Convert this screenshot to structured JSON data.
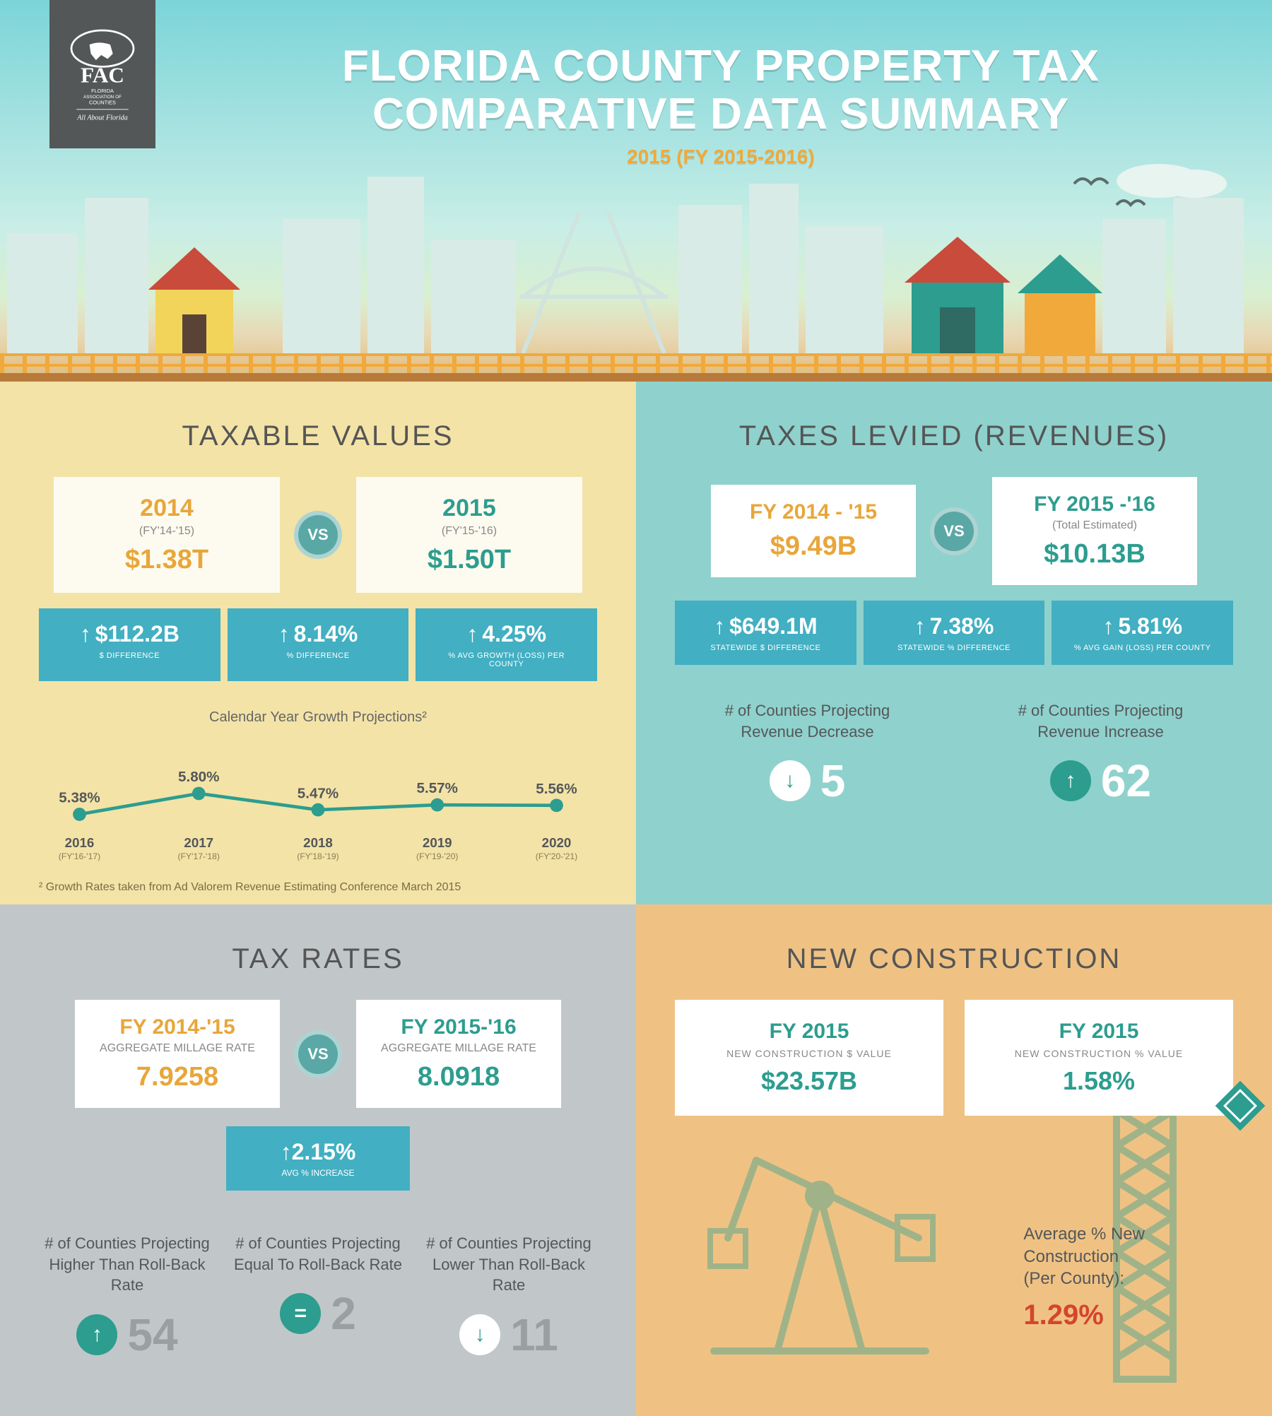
{
  "colors": {
    "teal": "#2c9d8f",
    "gold": "#e8a63a",
    "statBg": "#42afc2",
    "panel1": "#f3e3a7",
    "panel2": "#8fd1cd",
    "panel3": "#c1c7c9",
    "panel4": "#efc284",
    "red": "#d4452c",
    "grey": "#9aa0a2"
  },
  "header": {
    "title_line1": "FLORIDA COUNTY PROPERTY TAX",
    "title_line2": "COMPARATIVE DATA SUMMARY",
    "subtitle": "2015 (FY 2015-2016)",
    "logo_text_top": "FAC",
    "logo_text_mid": "FLORIDA ASSOCIATION OF COUNTIES",
    "logo_text_bot": "All About Florida"
  },
  "taxable_values": {
    "title": "TAXABLE VALUES",
    "left": {
      "label": "2014",
      "sub": "(FY'14-'15)",
      "value": "$1.38T"
    },
    "right": {
      "label": "2015",
      "sub": "(FY'15-'16)",
      "value": "$1.50T"
    },
    "stats": [
      {
        "value": "$112.2B",
        "label": "$ DIFFERENCE"
      },
      {
        "value": "8.14%",
        "label": "% DIFFERENCE"
      },
      {
        "value": "4.25%",
        "label": "% AVG GROWTH (LOSS) PER COUNTY"
      }
    ],
    "chart": {
      "title": "Calendar Year Growth Projections²",
      "type": "line",
      "points": [
        {
          "x_label": "2016",
          "x_sub": "(FY'16-'17)",
          "value": 5.38
        },
        {
          "x_label": "2017",
          "x_sub": "(FY'17-'18)",
          "value": 5.8
        },
        {
          "x_label": "2018",
          "x_sub": "(FY'18-'19)",
          "value": 5.47
        },
        {
          "x_label": "2019",
          "x_sub": "(FY'19-'20)",
          "value": 5.57
        },
        {
          "x_label": "2020",
          "x_sub": "(FY'20-'21)",
          "value": 5.56
        }
      ],
      "y_min": 5.2,
      "y_max": 6.0,
      "line_color": "#2c9d8f",
      "line_width": 5,
      "marker_fill": "#2c9d8f",
      "marker_radius": 10,
      "label_color": "#545758",
      "label_fontsize": 22
    },
    "footnote": "² Growth Rates taken from Ad Valorem Revenue Estimating Conference March 2015"
  },
  "taxes_levied": {
    "title": "TAXES LEVIED (REVENUES)",
    "left": {
      "label": "FY 2014 - '15",
      "sub": "",
      "value": "$9.49B"
    },
    "right": {
      "label": "FY 2015 -'16",
      "sub": "(Total Estimated)",
      "value": "$10.13B"
    },
    "stats": [
      {
        "value": "$649.1M",
        "label": "STATEWIDE $ DIFFERENCE"
      },
      {
        "value": "7.38%",
        "label": "STATEWIDE % DIFFERENCE"
      },
      {
        "value": "5.81%",
        "label": "% AVG GAIN (LOSS) PER COUNTY"
      }
    ],
    "counts": [
      {
        "label": "# of Counties Projecting Revenue Decrease",
        "icon": "down",
        "value": "5"
      },
      {
        "label": "# of Counties Projecting Revenue Increase",
        "icon": "up",
        "value": "62"
      }
    ]
  },
  "tax_rates": {
    "title": "TAX RATES",
    "left": {
      "label": "FY 2014-'15",
      "sub": "AGGREGATE MILLAGE RATE",
      "value": "7.9258"
    },
    "right": {
      "label": "FY 2015-'16",
      "sub": "AGGREGATE MILLAGE RATE",
      "value": "8.0918"
    },
    "mini_stat": {
      "value": "2.15%",
      "label": "AVG % INCREASE"
    },
    "counts": [
      {
        "label": "# of Counties Projecting Higher Than Roll-Back Rate",
        "icon": "up",
        "value": "54"
      },
      {
        "label": "# of Counties Projecting Equal To Roll-Back Rate",
        "icon": "equal",
        "value": "2"
      },
      {
        "label": "# of Counties Projecting Lower Than Roll-Back Rate",
        "icon": "down",
        "value": "11"
      }
    ]
  },
  "new_construction": {
    "title": "NEW CONSTRUCTION",
    "cards": [
      {
        "label": "FY 2015",
        "sub": "NEW CONSTRUCTION $ VALUE",
        "value": "$23.57B"
      },
      {
        "label": "FY 2015",
        "sub": "NEW CONSTRUCTION % VALUE",
        "value": "1.58%"
      }
    ],
    "avg": {
      "text": "Average % New Construction (Per County):",
      "value": "1.29%"
    }
  },
  "vs_label": "VS"
}
